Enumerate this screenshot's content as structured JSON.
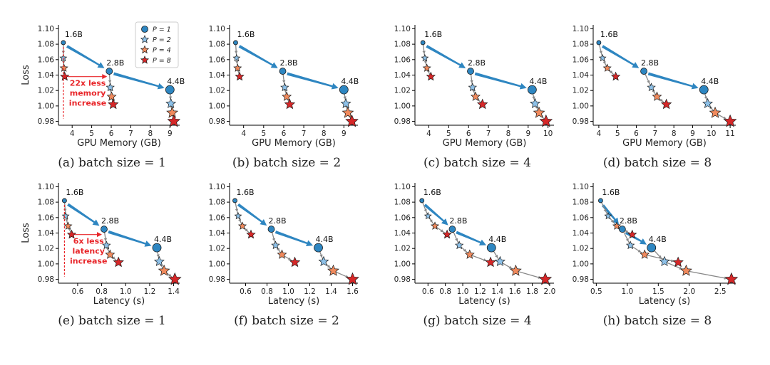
{
  "colors": {
    "p1": "#2e86c1",
    "p2": "#8ec1e8",
    "p4": "#f08a5d",
    "p8": "#d62728",
    "arrow": "#2e86c1",
    "line": "#888888",
    "annotation": "#e8262a"
  },
  "legend": {
    "entries": [
      {
        "label": "P = 1",
        "marker": "circle",
        "color": "p1"
      },
      {
        "label": "P = 2",
        "marker": "star",
        "color": "p2"
      },
      {
        "label": "P = 4",
        "marker": "star",
        "color": "p4"
      },
      {
        "label": "P = 8",
        "marker": "star",
        "color": "p8"
      }
    ]
  },
  "chart_data": [
    {
      "type": "scatter",
      "caption": "(a) batch size = 1",
      "xlabel": "GPU Memory (GB)",
      "ylabel": "Loss",
      "xlim": [
        3.3,
        9.5
      ],
      "ylim": [
        0.975,
        1.105
      ],
      "xticks": [
        4,
        5,
        6,
        7,
        8,
        9
      ],
      "xtick_labels": [
        "4",
        "5",
        "6",
        "7",
        "8",
        "9"
      ],
      "yticks": [
        0.98,
        1.0,
        1.02,
        1.04,
        1.06,
        1.08,
        1.1
      ],
      "ytick_labels": [
        "0.98",
        "1.00",
        "1.02",
        "1.04",
        "1.06",
        "1.08",
        "1.10"
      ],
      "models": [
        {
          "name": "1.6B",
          "points": [
            [
              3.55,
              1.082
            ],
            [
              3.55,
              1.062
            ],
            [
              3.58,
              1.049
            ],
            [
              3.62,
              1.038
            ]
          ]
        },
        {
          "name": "2.8B",
          "points": [
            [
              5.9,
              1.045
            ],
            [
              5.95,
              1.024
            ],
            [
              6.02,
              1.012
            ],
            [
              6.1,
              1.002
            ]
          ]
        },
        {
          "name": "4.4B",
          "points": [
            [
              9.0,
              1.021
            ],
            [
              9.05,
              1.003
            ],
            [
              9.12,
              0.991
            ],
            [
              9.2,
              0.98
            ]
          ]
        }
      ],
      "annotation": {
        "lines": [
          "22x less",
          "memory",
          "increase"
        ]
      }
    },
    {
      "type": "scatter",
      "caption": "(b) batch size = 2",
      "xlabel": "GPU Memory (GB)",
      "ylabel": "",
      "xlim": [
        3.3,
        9.7
      ],
      "ylim": [
        0.975,
        1.105
      ],
      "xticks": [
        4,
        5,
        6,
        7,
        8,
        9
      ],
      "xtick_labels": [
        "4",
        "5",
        "6",
        "7",
        "8",
        "9"
      ],
      "yticks": [
        0.98,
        1.0,
        1.02,
        1.04,
        1.06,
        1.08,
        1.1
      ],
      "ytick_labels": [
        "0.98",
        "1.00",
        "1.02",
        "1.04",
        "1.06",
        "1.08",
        "1.10"
      ],
      "models": [
        {
          "name": "1.6B",
          "points": [
            [
              3.6,
              1.082
            ],
            [
              3.65,
              1.062
            ],
            [
              3.7,
              1.049
            ],
            [
              3.8,
              1.038
            ]
          ]
        },
        {
          "name": "2.8B",
          "points": [
            [
              5.95,
              1.045
            ],
            [
              6.05,
              1.024
            ],
            [
              6.15,
              1.012
            ],
            [
              6.3,
              1.002
            ]
          ]
        },
        {
          "name": "4.4B",
          "points": [
            [
              9.0,
              1.021
            ],
            [
              9.1,
              1.003
            ],
            [
              9.2,
              0.991
            ],
            [
              9.4,
              0.98
            ]
          ]
        }
      ]
    },
    {
      "type": "scatter",
      "caption": "(c) batch size = 4",
      "xlabel": "GPU Memory (GB)",
      "ylabel": "",
      "xlim": [
        3.3,
        10.3
      ],
      "ylim": [
        0.975,
        1.105
      ],
      "xticks": [
        4,
        5,
        6,
        7,
        8,
        9,
        10
      ],
      "xtick_labels": [
        "4",
        "5",
        "6",
        "7",
        "8",
        "9",
        "10"
      ],
      "yticks": [
        0.98,
        1.0,
        1.02,
        1.04,
        1.06,
        1.08,
        1.1
      ],
      "ytick_labels": [
        "0.98",
        "1.00",
        "1.02",
        "1.04",
        "1.06",
        "1.08",
        "1.10"
      ],
      "models": [
        {
          "name": "1.6B",
          "points": [
            [
              3.7,
              1.082
            ],
            [
              3.8,
              1.062
            ],
            [
              3.9,
              1.049
            ],
            [
              4.1,
              1.038
            ]
          ]
        },
        {
          "name": "2.8B",
          "points": [
            [
              6.1,
              1.045
            ],
            [
              6.2,
              1.024
            ],
            [
              6.35,
              1.012
            ],
            [
              6.7,
              1.002
            ]
          ]
        },
        {
          "name": "4.4B",
          "points": [
            [
              9.2,
              1.021
            ],
            [
              9.35,
              1.003
            ],
            [
              9.55,
              0.991
            ],
            [
              9.9,
              0.98
            ]
          ]
        }
      ]
    },
    {
      "type": "scatter",
      "caption": "(d) batch size = 8",
      "xlabel": "GPU Memory (GB)",
      "ylabel": "",
      "xlim": [
        3.7,
        11.3
      ],
      "ylim": [
        0.975,
        1.105
      ],
      "xticks": [
        4,
        5,
        6,
        7,
        8,
        9,
        10,
        11
      ],
      "xtick_labels": [
        "4",
        "5",
        "6",
        "7",
        "8",
        "9",
        "10",
        "11"
      ],
      "yticks": [
        0.98,
        1.0,
        1.02,
        1.04,
        1.06,
        1.08,
        1.1
      ],
      "ytick_labels": [
        "0.98",
        "1.00",
        "1.02",
        "1.04",
        "1.06",
        "1.08",
        "1.10"
      ],
      "models": [
        {
          "name": "1.6B",
          "points": [
            [
              4.0,
              1.082
            ],
            [
              4.2,
              1.062
            ],
            [
              4.45,
              1.049
            ],
            [
              4.9,
              1.038
            ]
          ]
        },
        {
          "name": "2.8B",
          "points": [
            [
              6.4,
              1.045
            ],
            [
              6.8,
              1.024
            ],
            [
              7.1,
              1.012
            ],
            [
              7.6,
              1.002
            ]
          ]
        },
        {
          "name": "4.4B",
          "points": [
            [
              9.6,
              1.021
            ],
            [
              9.8,
              1.003
            ],
            [
              10.2,
              0.991
            ],
            [
              11.0,
              0.98
            ]
          ]
        }
      ]
    },
    {
      "type": "scatter",
      "caption": "(e) batch size = 1",
      "xlabel": "Latency (s)",
      "ylabel": "Loss",
      "xlim": [
        0.44,
        1.45
      ],
      "ylim": [
        0.975,
        1.105
      ],
      "xticks": [
        0.6,
        0.8,
        1.0,
        1.2,
        1.4
      ],
      "xtick_labels": [
        "0.6",
        "0.8",
        "1.0",
        "1.2",
        "1.4"
      ],
      "yticks": [
        0.98,
        1.0,
        1.02,
        1.04,
        1.06,
        1.08,
        1.1
      ],
      "ytick_labels": [
        "0.98",
        "1.00",
        "1.02",
        "1.04",
        "1.06",
        "1.08",
        "1.10"
      ],
      "models": [
        {
          "name": "1.6B",
          "points": [
            [
              0.49,
              1.082
            ],
            [
              0.5,
              1.062
            ],
            [
              0.52,
              1.049
            ],
            [
              0.55,
              1.038
            ]
          ]
        },
        {
          "name": "2.8B",
          "points": [
            [
              0.82,
              1.045
            ],
            [
              0.84,
              1.024
            ],
            [
              0.87,
              1.012
            ],
            [
              0.94,
              1.002
            ]
          ]
        },
        {
          "name": "4.4B",
          "points": [
            [
              1.26,
              1.021
            ],
            [
              1.28,
              1.003
            ],
            [
              1.32,
              0.991
            ],
            [
              1.41,
              0.98
            ]
          ]
        }
      ],
      "annotation": {
        "lines": [
          "6x less",
          "latency",
          "increase"
        ]
      }
    },
    {
      "type": "scatter",
      "caption": "(f) batch size = 2",
      "xlabel": "Latency (s)",
      "ylabel": "",
      "xlim": [
        0.45,
        1.65
      ],
      "ylim": [
        0.975,
        1.105
      ],
      "xticks": [
        0.6,
        0.8,
        1.0,
        1.2,
        1.4,
        1.6
      ],
      "xtick_labels": [
        "0.6",
        "0.8",
        "1.0",
        "1.2",
        "1.4",
        "1.6"
      ],
      "yticks": [
        0.98,
        1.0,
        1.02,
        1.04,
        1.06,
        1.08,
        1.1
      ],
      "ytick_labels": [
        "0.98",
        "1.00",
        "1.02",
        "1.04",
        "1.06",
        "1.08",
        "1.10"
      ],
      "models": [
        {
          "name": "1.6B",
          "points": [
            [
              0.5,
              1.082
            ],
            [
              0.53,
              1.062
            ],
            [
              0.57,
              1.049
            ],
            [
              0.65,
              1.038
            ]
          ]
        },
        {
          "name": "2.8B",
          "points": [
            [
              0.84,
              1.045
            ],
            [
              0.88,
              1.024
            ],
            [
              0.94,
              1.012
            ],
            [
              1.06,
              1.002
            ]
          ]
        },
        {
          "name": "4.4B",
          "points": [
            [
              1.28,
              1.021
            ],
            [
              1.33,
              1.003
            ],
            [
              1.42,
              0.991
            ],
            [
              1.6,
              0.98
            ]
          ]
        }
      ]
    },
    {
      "type": "scatter",
      "caption": "(g) batch size = 4",
      "xlabel": "Latency (s)",
      "ylabel": "",
      "xlim": [
        0.45,
        2.05
      ],
      "ylim": [
        0.975,
        1.105
      ],
      "xticks": [
        0.6,
        0.8,
        1.0,
        1.2,
        1.4,
        1.6,
        1.8,
        2.0
      ],
      "xtick_labels": [
        "0.6",
        "0.8",
        "1.0",
        "1.2",
        "1.4",
        "1.6",
        "1.8",
        "2.0"
      ],
      "yticks": [
        0.98,
        1.0,
        1.02,
        1.04,
        1.06,
        1.08,
        1.1
      ],
      "ytick_labels": [
        "0.98",
        "1.00",
        "1.02",
        "1.04",
        "1.06",
        "1.08",
        "1.10"
      ],
      "models": [
        {
          "name": "1.6B",
          "points": [
            [
              0.53,
              1.082
            ],
            [
              0.6,
              1.062
            ],
            [
              0.68,
              1.049
            ],
            [
              0.82,
              1.038
            ]
          ]
        },
        {
          "name": "2.8B",
          "points": [
            [
              0.88,
              1.045
            ],
            [
              0.96,
              1.024
            ],
            [
              1.08,
              1.012
            ],
            [
              1.32,
              1.002
            ]
          ]
        },
        {
          "name": "4.4B",
          "points": [
            [
              1.33,
              1.021
            ],
            [
              1.43,
              1.003
            ],
            [
              1.61,
              0.991
            ],
            [
              1.95,
              0.98
            ]
          ]
        }
      ]
    },
    {
      "type": "scatter",
      "caption": "(h) batch size = 8",
      "xlabel": "Latency (s)",
      "ylabel": "",
      "xlim": [
        0.45,
        2.75
      ],
      "ylim": [
        0.975,
        1.105
      ],
      "xticks": [
        0.5,
        1.0,
        1.5,
        2.0,
        2.5
      ],
      "xtick_labels": [
        "0.5",
        "1.0",
        "1.5",
        "2.0",
        "2.5"
      ],
      "yticks": [
        0.98,
        1.0,
        1.02,
        1.04,
        1.06,
        1.08,
        1.1
      ],
      "ytick_labels": [
        "0.98",
        "1.00",
        "1.02",
        "1.04",
        "1.06",
        "1.08",
        "1.10"
      ],
      "models": [
        {
          "name": "1.6B",
          "points": [
            [
              0.57,
              1.082
            ],
            [
              0.69,
              1.062
            ],
            [
              0.83,
              1.049
            ],
            [
              1.08,
              1.038
            ]
          ]
        },
        {
          "name": "2.8B",
          "points": [
            [
              0.92,
              1.045
            ],
            [
              1.05,
              1.024
            ],
            [
              1.28,
              1.012
            ],
            [
              1.82,
              1.002
            ]
          ]
        },
        {
          "name": "4.4B",
          "points": [
            [
              1.39,
              1.021
            ],
            [
              1.6,
              1.003
            ],
            [
              1.95,
              0.991
            ],
            [
              2.68,
              0.98
            ]
          ]
        }
      ]
    }
  ]
}
